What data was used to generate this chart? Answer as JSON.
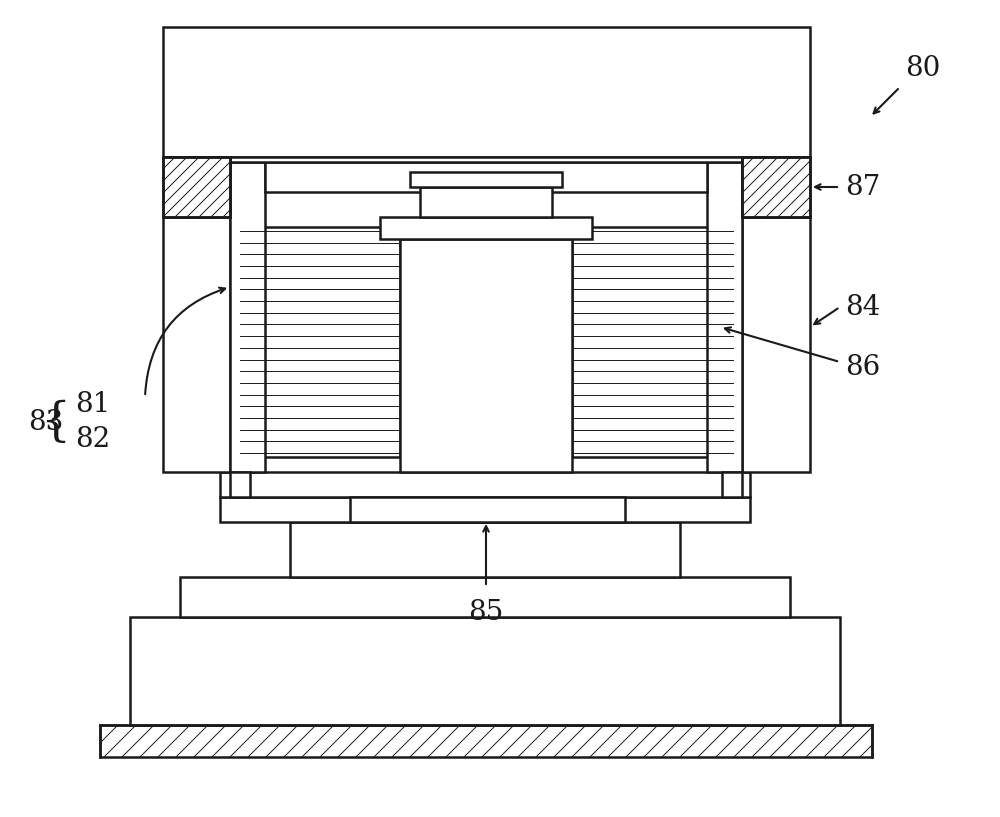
{
  "bg_color": "#ffffff",
  "line_color": "#1a1a1a",
  "lw": 1.8,
  "lw_thin": 0.7,
  "figsize": [
    10.0,
    8.17
  ],
  "dpi": 100
}
